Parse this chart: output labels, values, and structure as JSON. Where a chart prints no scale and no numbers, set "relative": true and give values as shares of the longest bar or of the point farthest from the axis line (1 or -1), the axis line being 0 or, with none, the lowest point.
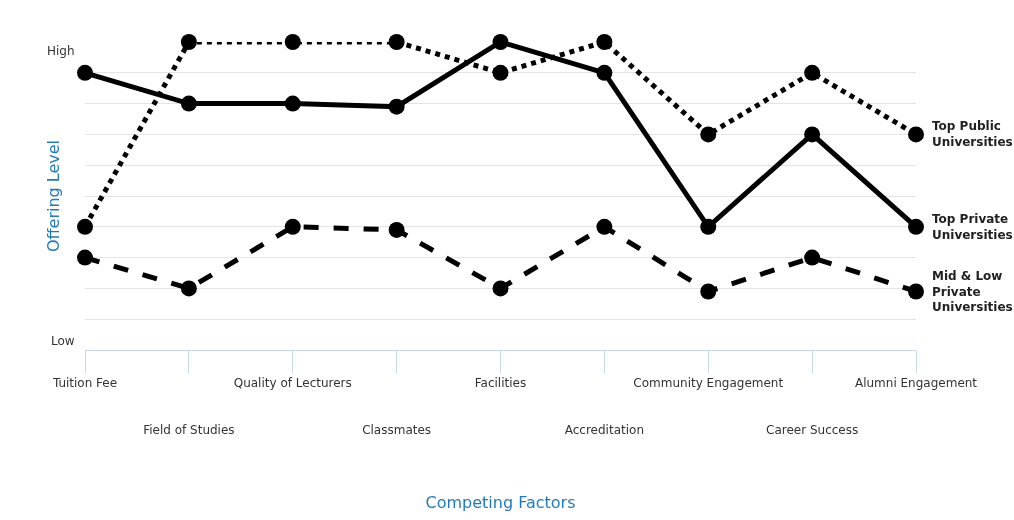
{
  "chart_data": {
    "type": "line",
    "xlabel": "Competing Factors",
    "ylabel": "Offering Level",
    "categories": [
      "Tuition Fee",
      "Field of Studies",
      "Quality of Lecturers",
      "Classmates",
      "Facilities",
      "Accreditation",
      "Community Engagement",
      "Career Success",
      "Alumni Engagement"
    ],
    "relative": true,
    "annotations": [
      "Low",
      "High"
    ],
    "grid": "y",
    "legend": false,
    "marker": "circle",
    "series": [
      {
        "name": "Top Public Universities",
        "color": "#000000",
        "line_style": "dotted",
        "values": [
          0.4,
          1,
          1,
          1,
          0.9,
          1,
          0.7,
          0.9,
          0.7
        ]
      },
      {
        "name": "Top Private Universities",
        "color": "#000000",
        "line_style": "solid",
        "values": [
          0.9,
          0.8,
          0.8,
          0.79,
          1,
          0.9,
          0.4,
          0.7,
          0.4
        ]
      },
      {
        "name": "Mid & Low Private Universities",
        "color": "#000000",
        "line_style": "dashed",
        "values": [
          0.3,
          0.2,
          0.4,
          0.39,
          0.2,
          0.4,
          0.19,
          0.3,
          0.19
        ]
      }
    ]
  }
}
